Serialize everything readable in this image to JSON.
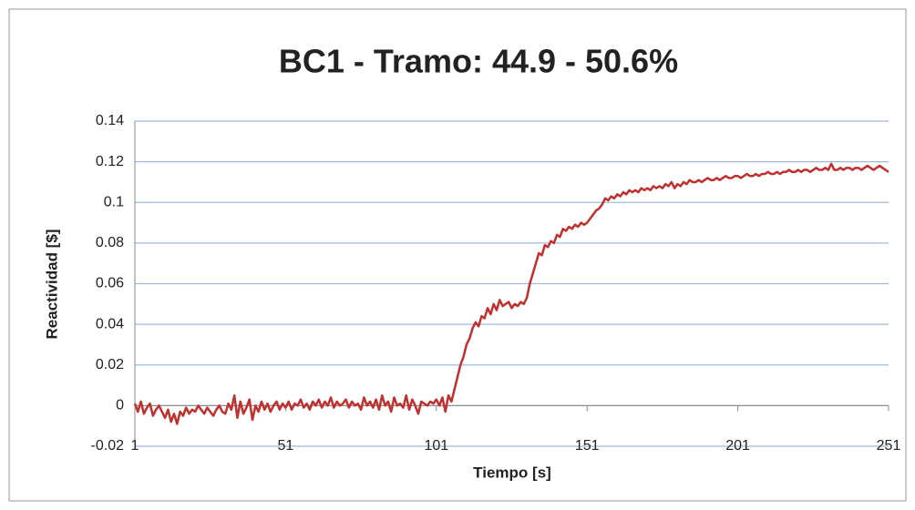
{
  "chart_data": {
    "type": "line",
    "title": "BC1 - Tramo: 44.9 - 50.6%",
    "x_label": "Tiempo [s]",
    "y_label": "Reactividad [$]",
    "color": "#c0302e",
    "grid": true,
    "xlim": [
      1,
      251
    ],
    "xticks": [
      1,
      51,
      101,
      151,
      201,
      251
    ],
    "ylim": [
      -0.02,
      0.14
    ],
    "yticks": [
      0.14,
      0.12,
      0.1,
      0.08,
      0.06,
      0.04,
      0.02,
      0,
      -0.02
    ],
    "x": [
      1,
      2,
      3,
      4,
      5,
      6,
      7,
      8,
      9,
      10,
      11,
      12,
      13,
      14,
      15,
      16,
      17,
      18,
      19,
      20,
      21,
      22,
      23,
      24,
      25,
      26,
      27,
      28,
      29,
      30,
      31,
      32,
      33,
      34,
      35,
      36,
      37,
      38,
      39,
      40,
      41,
      42,
      43,
      44,
      45,
      46,
      47,
      48,
      49,
      50,
      51,
      52,
      53,
      54,
      55,
      56,
      57,
      58,
      59,
      60,
      61,
      62,
      63,
      64,
      65,
      66,
      67,
      68,
      69,
      70,
      71,
      72,
      73,
      74,
      75,
      76,
      77,
      78,
      79,
      80,
      81,
      82,
      83,
      84,
      85,
      86,
      87,
      88,
      89,
      90,
      91,
      92,
      93,
      94,
      95,
      96,
      97,
      98,
      99,
      100,
      101,
      102,
      103,
      104,
      105,
      106,
      107,
      108,
      109,
      110,
      111,
      112,
      113,
      114,
      115,
      116,
      117,
      118,
      119,
      120,
      121,
      122,
      123,
      124,
      125,
      126,
      127,
      128,
      129,
      130,
      131,
      132,
      133,
      134,
      135,
      136,
      137,
      138,
      139,
      140,
      141,
      142,
      143,
      144,
      145,
      146,
      147,
      148,
      149,
      150,
      151,
      152,
      153,
      154,
      155,
      156,
      157,
      158,
      159,
      160,
      161,
      162,
      163,
      164,
      165,
      166,
      167,
      168,
      169,
      170,
      171,
      172,
      173,
      174,
      175,
      176,
      177,
      178,
      179,
      180,
      181,
      182,
      183,
      184,
      185,
      186,
      187,
      188,
      189,
      190,
      191,
      192,
      193,
      194,
      195,
      196,
      197,
      198,
      199,
      200,
      201,
      202,
      203,
      204,
      205,
      206,
      207,
      208,
      209,
      210,
      211,
      212,
      213,
      214,
      215,
      216,
      217,
      218,
      219,
      220,
      221,
      222,
      223,
      224,
      225,
      226,
      227,
      228,
      229,
      230,
      231,
      232,
      233,
      234,
      235,
      236,
      237,
      238,
      239,
      240,
      241,
      242,
      243,
      244,
      245,
      246,
      247,
      248,
      249,
      250,
      251
    ],
    "values": [
      0.001,
      -0.003,
      0.002,
      -0.004,
      -0.001,
      0.001,
      -0.005,
      -0.002,
      0.0,
      -0.003,
      -0.006,
      -0.002,
      -0.008,
      -0.004,
      -0.009,
      -0.003,
      -0.005,
      -0.001,
      -0.004,
      -0.002,
      -0.003,
      0.0,
      -0.002,
      -0.004,
      -0.001,
      -0.003,
      -0.005,
      -0.002,
      0.0,
      -0.003,
      -0.004,
      0.001,
      -0.002,
      0.005,
      -0.006,
      0.002,
      -0.004,
      -0.001,
      0.003,
      -0.007,
      0.0,
      -0.003,
      0.002,
      -0.002,
      0.001,
      -0.003,
      0.0,
      0.002,
      -0.002,
      0.001,
      -0.001,
      0.002,
      -0.002,
      0.001,
      0.0,
      0.003,
      -0.001,
      0.001,
      -0.002,
      0.002,
      0.0,
      0.003,
      -0.001,
      0.002,
      0.0,
      0.004,
      -0.001,
      0.002,
      0.0,
      0.001,
      0.003,
      -0.001,
      0.002,
      0.0,
      0.001,
      -0.002,
      0.004,
      0.0,
      0.002,
      -0.001,
      0.003,
      -0.002,
      0.005,
      0.0,
      0.002,
      -0.003,
      0.004,
      0.0,
      0.001,
      -0.001,
      0.005,
      -0.002,
      0.003,
      0.0,
      -0.004,
      0.002,
      0.001,
      0.0,
      0.002,
      0.001,
      0.003,
      0.0,
      0.004,
      -0.003,
      0.005,
      0.002,
      0.008,
      0.014,
      0.02,
      0.024,
      0.03,
      0.033,
      0.038,
      0.041,
      0.039,
      0.044,
      0.043,
      0.048,
      0.045,
      0.05,
      0.047,
      0.052,
      0.049,
      0.05,
      0.051,
      0.048,
      0.05,
      0.049,
      0.051,
      0.05,
      0.053,
      0.06,
      0.065,
      0.07,
      0.075,
      0.074,
      0.079,
      0.078,
      0.081,
      0.08,
      0.084,
      0.083,
      0.087,
      0.086,
      0.088,
      0.087,
      0.089,
      0.088,
      0.09,
      0.089,
      0.09,
      0.092,
      0.094,
      0.096,
      0.097,
      0.099,
      0.102,
      0.101,
      0.103,
      0.102,
      0.104,
      0.103,
      0.105,
      0.104,
      0.106,
      0.105,
      0.106,
      0.105,
      0.107,
      0.106,
      0.107,
      0.106,
      0.108,
      0.107,
      0.108,
      0.107,
      0.109,
      0.108,
      0.11,
      0.107,
      0.109,
      0.108,
      0.11,
      0.109,
      0.111,
      0.11,
      0.11,
      0.111,
      0.11,
      0.111,
      0.112,
      0.111,
      0.111,
      0.112,
      0.111,
      0.112,
      0.113,
      0.112,
      0.112,
      0.113,
      0.113,
      0.112,
      0.113,
      0.114,
      0.113,
      0.113,
      0.114,
      0.113,
      0.114,
      0.114,
      0.115,
      0.114,
      0.114,
      0.115,
      0.114,
      0.115,
      0.115,
      0.116,
      0.115,
      0.115,
      0.116,
      0.115,
      0.116,
      0.116,
      0.115,
      0.116,
      0.117,
      0.116,
      0.116,
      0.117,
      0.116,
      0.119,
      0.116,
      0.116,
      0.117,
      0.116,
      0.117,
      0.117,
      0.116,
      0.117,
      0.117,
      0.116,
      0.117,
      0.118,
      0.117,
      0.116,
      0.117,
      0.118,
      0.117,
      0.116,
      0.115
    ]
  }
}
